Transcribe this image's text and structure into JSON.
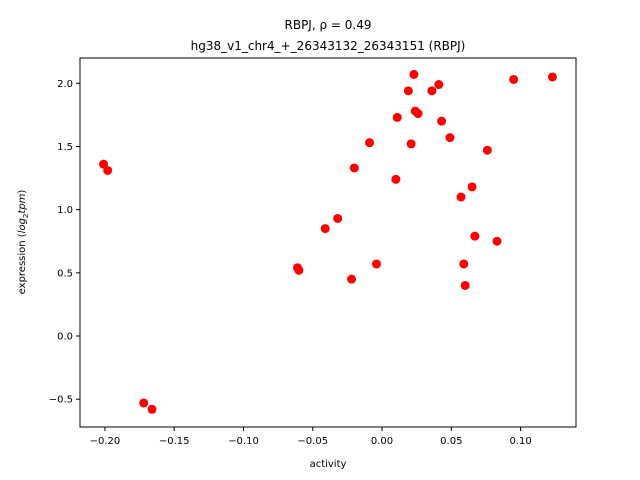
{
  "chart_data": {
    "type": "scatter",
    "title_line1": "RBPJ, ρ = 0.49",
    "title_line2": "hg38_v1_chr4_+_26343132_26343151 (RBPJ)",
    "xlabel": "activity",
    "ylabel_prefix": "expression (",
    "ylabel_log": "log",
    "ylabel_sub": "2",
    "ylabel_tpm": "tpm",
    "ylabel_suffix": ")",
    "xlim": [
      -0.218,
      0.14
    ],
    "ylim": [
      -0.72,
      2.2
    ],
    "xticks": [
      -0.2,
      -0.15,
      -0.1,
      -0.05,
      0.0,
      0.05,
      0.1
    ],
    "xtick_labels": [
      "−0.20",
      "−0.15",
      "−0.10",
      "−0.05",
      "0.00",
      "0.05",
      "0.10"
    ],
    "yticks": [
      -0.5,
      0.0,
      0.5,
      1.0,
      1.5,
      2.0
    ],
    "ytick_labels": [
      "−0.5",
      "0.0",
      "0.5",
      "1.0",
      "1.5",
      "2.0"
    ],
    "marker_color": "#ff0000",
    "x": [
      -0.201,
      -0.198,
      -0.172,
      -0.166,
      -0.061,
      -0.06,
      -0.041,
      -0.032,
      -0.022,
      -0.02,
      -0.009,
      -0.004,
      0.01,
      0.011,
      0.019,
      0.021,
      0.023,
      0.024,
      0.026,
      0.036,
      0.041,
      0.043,
      0.049,
      0.057,
      0.059,
      0.06,
      0.065,
      0.067,
      0.076,
      0.083,
      0.095,
      0.123
    ],
    "y": [
      1.36,
      1.31,
      -0.53,
      -0.58,
      0.54,
      0.52,
      0.85,
      0.93,
      0.45,
      1.33,
      1.53,
      0.57,
      1.24,
      1.73,
      1.94,
      1.52,
      2.07,
      1.78,
      1.76,
      1.94,
      1.99,
      1.7,
      1.57,
      1.1,
      0.57,
      0.4,
      1.18,
      0.79,
      1.47,
      0.75,
      2.03,
      2.05
    ]
  }
}
